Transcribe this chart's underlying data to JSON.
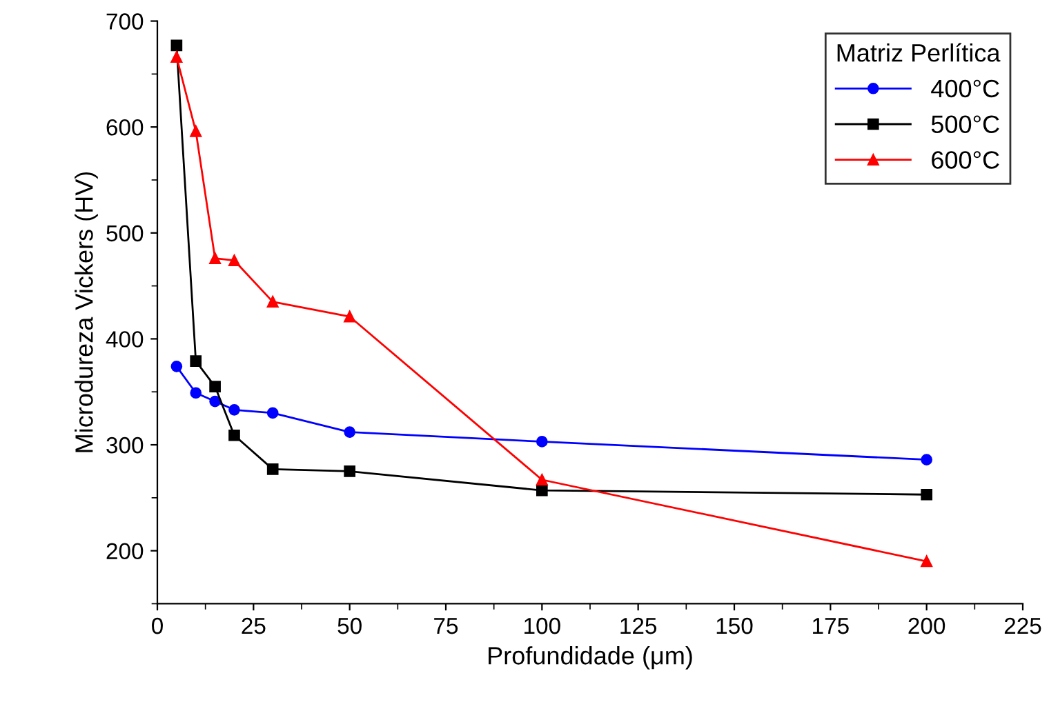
{
  "chart_data": {
    "type": "line",
    "xlabel": "Profundidade (μm)",
    "ylabel": "Microdureza Vickers (HV)",
    "legend_title": "Matriz Perlítica",
    "x": [
      5,
      10,
      15,
      20,
      30,
      50,
      100,
      200
    ],
    "series": [
      {
        "name": "400°C",
        "color": "#0000ff",
        "marker": "circle",
        "values": [
          374,
          349,
          341,
          333,
          330,
          312,
          303,
          286
        ]
      },
      {
        "name": "500°C",
        "color": "#000000",
        "marker": "square",
        "values": [
          677,
          379,
          355,
          309,
          277,
          275,
          257,
          253
        ]
      },
      {
        "name": "600°C",
        "color": "#ff0000",
        "marker": "triangle",
        "values": [
          666,
          596,
          476,
          474,
          435,
          421,
          267,
          190
        ]
      }
    ],
    "xlim": [
      0,
      225
    ],
    "xticks": [
      0,
      25,
      50,
      75,
      100,
      125,
      150,
      175,
      200,
      225
    ],
    "ylim": [
      150,
      700
    ],
    "yticks": [
      200,
      300,
      400,
      500,
      600,
      700
    ],
    "grid": false,
    "legend": "top right",
    "line_style": "solid"
  }
}
